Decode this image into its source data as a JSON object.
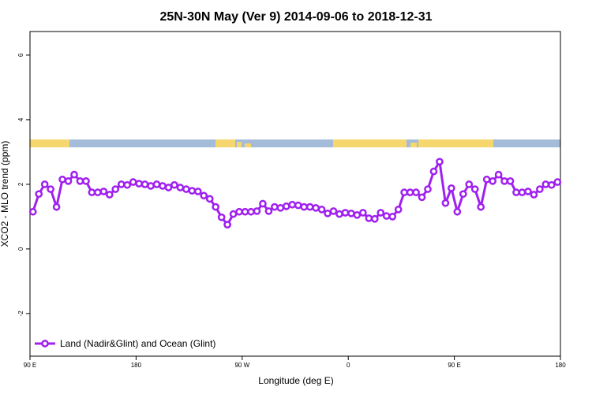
{
  "chart_data": {
    "type": "line",
    "title": "25N-30N May (Ver 9)   2014-09-06 to 2018-12-31",
    "x_label": "Longitude (deg E)",
    "y_label": "XCO2 - MLO trend (ppm)",
    "xlim": [
      90,
      540
    ],
    "ylim": [
      -3.32,
      6.73
    ],
    "xticks": [
      {
        "value": 90,
        "label": "90 E"
      },
      180,
      {
        "value": 270,
        "label": "90 W"
      },
      {
        "value": 360,
        "label": "0"
      },
      {
        "value": 450,
        "label": "90 E"
      },
      {
        "value": 540,
        "label": "180"
      }
    ],
    "yticks": [
      -2,
      0,
      2,
      4,
      6
    ],
    "legend": "bottom-left",
    "x": [
      92.5,
      97.5,
      102.5,
      107.5,
      112.5,
      117.5,
      122.5,
      127.5,
      132.5,
      137.5,
      142.5,
      147.5,
      152.5,
      157.5,
      162.5,
      167.5,
      172.5,
      177.5,
      182.5,
      187.5,
      192.5,
      197.5,
      202.5,
      207.5,
      212.5,
      217.5,
      222.5,
      227.5,
      232.5,
      237.5,
      242.5,
      247.5,
      252.5,
      257.5,
      262.5,
      267.5,
      272.5,
      277.5,
      282.5,
      287.5,
      292.5,
      297.5,
      302.5,
      307.5,
      312.5,
      317.5,
      322.5,
      327.5,
      332.5,
      337.5,
      342.5,
      347.5,
      352.5,
      357.5,
      362.5,
      367.5,
      372.5,
      377.5,
      382.5,
      387.5,
      392.5,
      397.5,
      402.5,
      407.5,
      412.5,
      417.5,
      422.5,
      427.5,
      432.5,
      437.5,
      442.5,
      447.5,
      452.5,
      457.5,
      462.5,
      467.5,
      472.5,
      477.5,
      482.5,
      487.5,
      492.5,
      497.5,
      502.5,
      507.5,
      512.5,
      517.5,
      522.5,
      527.5,
      532.5,
      537.5
    ],
    "series": [
      {
        "name": "Land (Nadir&Glint) and Ocean (Glint)",
        "color": "#a020f0",
        "values": [
          1.15,
          1.7,
          2.0,
          1.85,
          1.3,
          2.15,
          2.1,
          2.3,
          2.1,
          2.1,
          1.75,
          1.75,
          1.78,
          1.68,
          1.85,
          2.0,
          1.98,
          2.07,
          2.02,
          2.0,
          1.95,
          2.0,
          1.95,
          1.9,
          1.98,
          1.9,
          1.85,
          1.8,
          1.78,
          1.65,
          1.55,
          1.3,
          0.98,
          0.75,
          1.08,
          1.15,
          1.15,
          1.15,
          1.17,
          1.4,
          1.17,
          1.3,
          1.27,
          1.32,
          1.37,
          1.35,
          1.3,
          1.3,
          1.27,
          1.22,
          1.1,
          1.17,
          1.08,
          1.12,
          1.1,
          1.05,
          1.12,
          0.95,
          0.93,
          1.12,
          1.02,
          1.0,
          1.22,
          1.75,
          1.75,
          1.75,
          1.6,
          1.85,
          2.4,
          2.7,
          1.42,
          1.88,
          1.15,
          1.7,
          2.0,
          1.85,
          1.3,
          2.15,
          2.1,
          2.3,
          2.1,
          2.1,
          1.75,
          1.75,
          1.78,
          1.68,
          1.85,
          2.0,
          1.98,
          2.07
        ]
      }
    ]
  }
}
